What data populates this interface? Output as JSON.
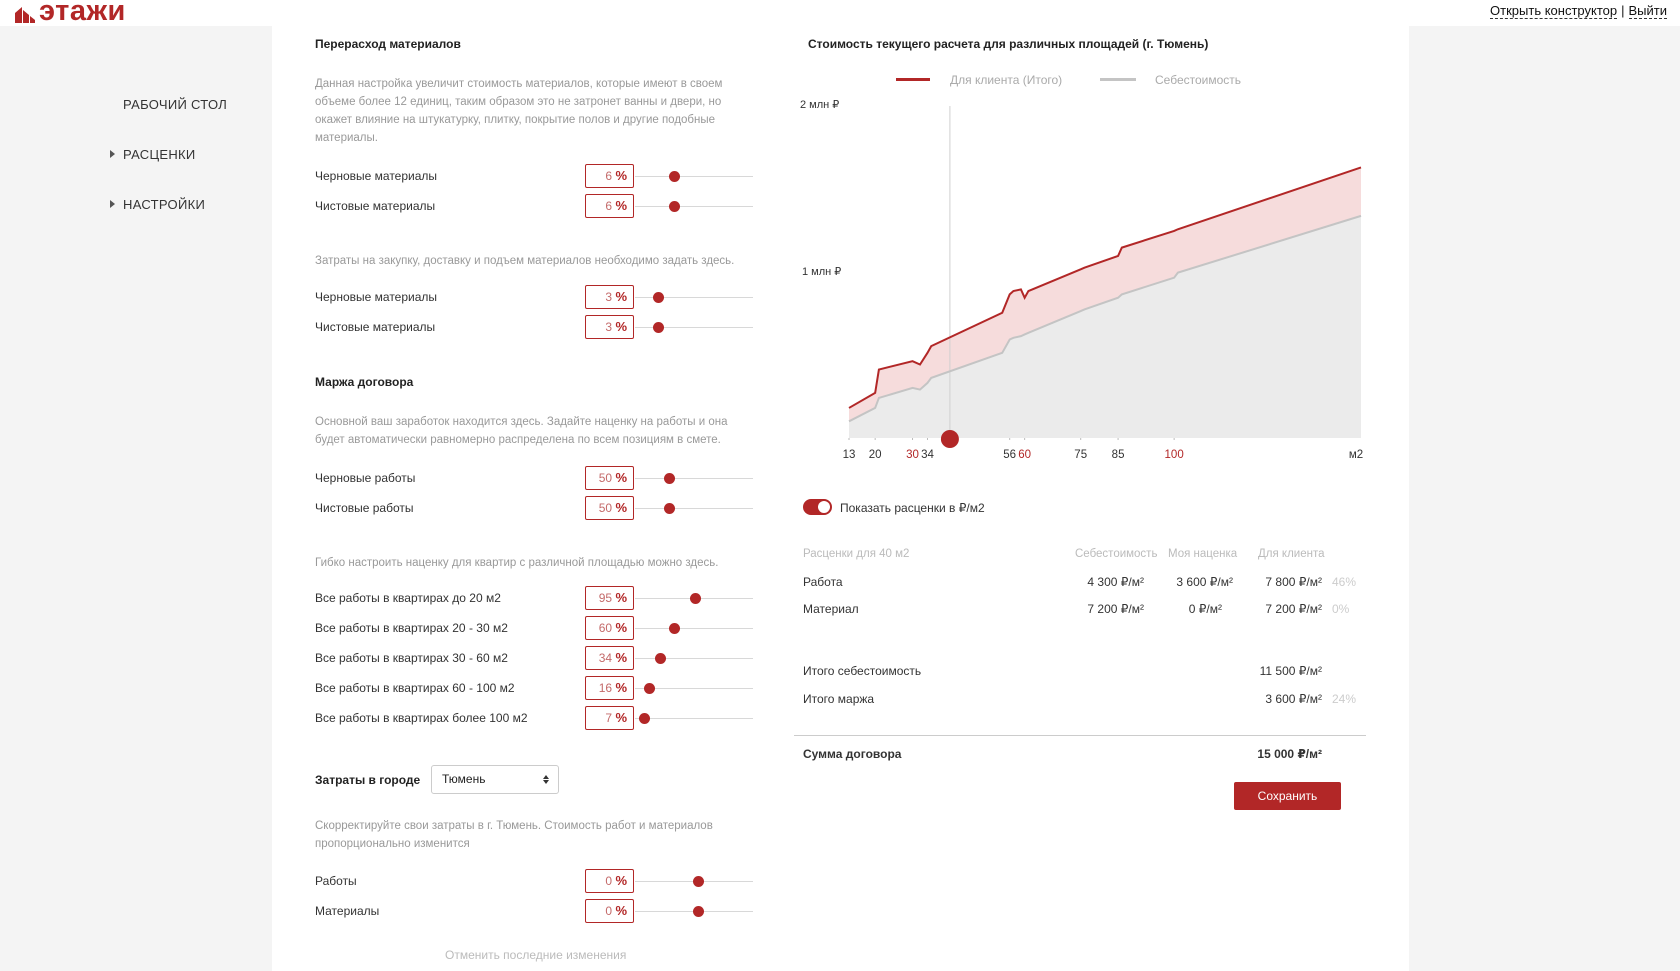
{
  "brand": {
    "logo_text": "этажи",
    "accent": "#b22727"
  },
  "top_links": {
    "constructor": "Открыть конструктор",
    "separator": "|",
    "logout": "Выйти"
  },
  "sidebar": {
    "items": [
      {
        "label": "РАБОЧИЙ СТОЛ"
      },
      {
        "label": "РАСЦЕНКИ"
      },
      {
        "label": "НАСТРОЙКИ"
      }
    ]
  },
  "overuse": {
    "title": "Перерасход материалов",
    "desc": "Данная настройка увеличит стоимость материалов, которые имеют в своем объеме более 12 единиц, таким образом это не затронет ванны и двери, но окажет влияние на штукатурку, плитку, покрытие полов и другие подобные материалы.",
    "rows": [
      {
        "label": "Черновые материалы",
        "value": "6"
      },
      {
        "label": "Чистовые материалы",
        "value": "6"
      }
    ]
  },
  "purchase": {
    "desc": "Затраты на закупку, доставку и подъем материалов необходимо задать здесь.",
    "rows": [
      {
        "label": "Черновые материалы",
        "value": "3"
      },
      {
        "label": "Чистовые материалы",
        "value": "3"
      }
    ]
  },
  "margin": {
    "title": "Маржа договора",
    "desc": "Основной ваш заработок находится здесь. Задайте наценку на работы и она будет автоматически равномерно распределена по всем позициям в смете.",
    "rows": [
      {
        "label": "Черновые работы",
        "value": "50"
      },
      {
        "label": "Чистовые работы",
        "value": "50"
      }
    ]
  },
  "area_margin": {
    "desc": "Гибко настроить наценку для квартир с различной площадью можно здесь.",
    "rows": [
      {
        "label": "Все работы в квартирах до 20 м2",
        "value": "95"
      },
      {
        "label": "Все работы в квартирах 20 - 30 м2",
        "value": "60"
      },
      {
        "label": "Все работы в квартирах 30 - 60 м2",
        "value": "34"
      },
      {
        "label": "Все работы в квартирах 60 - 100 м2",
        "value": "16"
      },
      {
        "label": "Все работы в квартирах более 100 м2",
        "value": "7"
      }
    ]
  },
  "city": {
    "label": "Затраты в городе",
    "selected": "Тюмень",
    "desc": "Скорректируйте свои затраты в г. Тюмень. Стоимость работ и материалов пропорционально изменится",
    "rows": [
      {
        "label": "Работы",
        "value": "0"
      },
      {
        "label": "Материалы",
        "value": "0"
      }
    ]
  },
  "percent_sign": "%",
  "undo_label": "Отменить последние изменения",
  "chart_data": {
    "type": "area",
    "title": "Стоимость текущего расчета для различных площадей (г. Тюмень)",
    "x_unit": "м2",
    "x_ticks": [
      "13",
      "20",
      "30",
      "34",
      "56",
      "60",
      "75",
      "85",
      "100"
    ],
    "x_ticks_highlighted": [
      "30",
      "60",
      "100"
    ],
    "y_ticks": [
      "2 млн ₽",
      "1 млн ₽"
    ],
    "ylim": [
      0,
      2000000
    ],
    "xlim": [
      13,
      150
    ],
    "selected_area": 40,
    "series": [
      {
        "name": "Для клиента (Итого)",
        "color": "#b22727",
        "x": [
          13,
          20,
          21,
          30,
          32,
          34,
          35,
          54,
          56,
          57,
          59,
          60,
          61,
          75,
          76,
          85,
          86,
          100,
          101,
          150
        ],
        "values": [
          180000,
          270000,
          410000,
          460000,
          440000,
          510000,
          550000,
          750000,
          860000,
          880000,
          890000,
          840000,
          880000,
          1010000,
          1020000,
          1090000,
          1140000,
          1240000,
          1250000,
          1620000
        ]
      },
      {
        "name": "Себестоимость",
        "color": "#c4c4c4",
        "x": [
          13,
          20,
          21,
          30,
          32,
          34,
          35,
          54,
          56,
          57,
          59,
          60,
          61,
          75,
          76,
          85,
          86,
          100,
          101,
          150
        ],
        "values": [
          100000,
          180000,
          240000,
          300000,
          290000,
          330000,
          360000,
          510000,
          590000,
          600000,
          610000,
          620000,
          630000,
          760000,
          770000,
          840000,
          860000,
          960000,
          990000,
          1330000
        ]
      }
    ]
  },
  "toggle_label": "Показать расценки в ₽/м2",
  "table": {
    "headers": [
      "Расценки для 40 м2",
      "Себестоимость",
      "Моя наценка",
      "Для клиента"
    ],
    "rows": [
      {
        "name": "Работа",
        "cost": "4 300 ₽/м²",
        "markup": "3 600 ₽/м²",
        "client": "7 800 ₽/м²",
        "pct": "46%"
      },
      {
        "name": "Материал",
        "cost": "7 200 ₽/м²",
        "markup": "0 ₽/м²",
        "client": "7 200 ₽/м²",
        "pct": "0%"
      }
    ],
    "totals": [
      {
        "name": "Итого себестоимость",
        "value": "11 500 ₽/м²",
        "pct": ""
      },
      {
        "name": "Итого маржа",
        "value": "3 600 ₽/м²",
        "pct": "24%"
      }
    ],
    "sum_label": "Сумма договора",
    "sum_value": "15 000 ₽/м²"
  },
  "save_label": "Сохранить"
}
